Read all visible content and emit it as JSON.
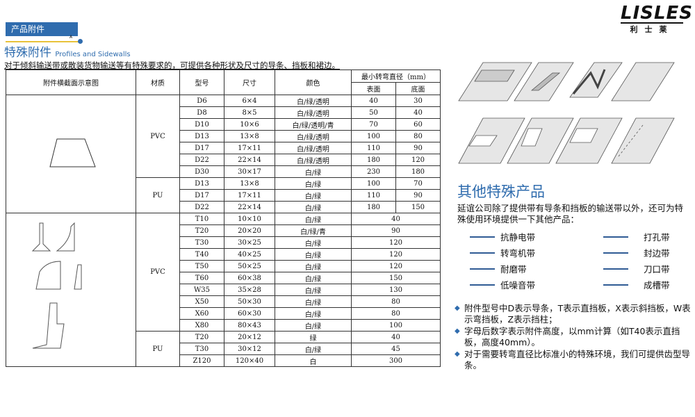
{
  "header": {
    "tab_label": "产品附件",
    "tab_marker": "A",
    "title_cn": "特殊附件",
    "title_en": "Profiles and Sidewalls",
    "intro": "对于倾斜输送带或散装货物输送等有特殊要求的，可提供各种形状及尺寸的导条、挡板和裙边。"
  },
  "logo": {
    "brand": "LISLES",
    "brand_cn": "利士莱"
  },
  "table": {
    "headers": {
      "diagram": "附件横截面示意图",
      "material": "材质",
      "model": "型号",
      "size": "尺寸",
      "color": "颜色",
      "min_diameter": "最小转弯直径（mm）",
      "surface": "表面",
      "bottom": "底面"
    },
    "groups": [
      {
        "material": "PVC",
        "rows": [
          [
            "D6",
            "6×4",
            "白/绿/透明",
            "40",
            "30"
          ],
          [
            "D8",
            "8×5",
            "白/绿/透明",
            "50",
            "40"
          ],
          [
            "D10",
            "10×6",
            "白/绿/透明/青",
            "70",
            "60"
          ],
          [
            "D13",
            "13×8",
            "白/绿/透明",
            "100",
            "80"
          ],
          [
            "D17",
            "17×11",
            "白/绿/透明",
            "110",
            "90"
          ],
          [
            "D22",
            "22×14",
            "白/绿/透明",
            "180",
            "120"
          ],
          [
            "D30",
            "30×17",
            "白/绿",
            "230",
            "180"
          ]
        ]
      },
      {
        "material": "PU",
        "rows": [
          [
            "D13",
            "13×8",
            "白/绿",
            "100",
            "70"
          ],
          [
            "D17",
            "17×11",
            "白/绿",
            "110",
            "90"
          ],
          [
            "D22",
            "22×14",
            "白/绿",
            "180",
            "150"
          ]
        ]
      },
      {
        "material": "PVC",
        "rows": [
          [
            "T10",
            "10×10",
            "白/绿",
            "40"
          ],
          [
            "T20",
            "20×20",
            "白/绿/青",
            "90"
          ],
          [
            "T30",
            "30×25",
            "白/绿",
            "120"
          ],
          [
            "T40",
            "40×25",
            "白/绿",
            "120"
          ],
          [
            "T50",
            "50×25",
            "白/绿",
            "120"
          ],
          [
            "T60",
            "60×38",
            "白/绿",
            "150"
          ],
          [
            "W35",
            "35×28",
            "白/绿",
            "130"
          ],
          [
            "X50",
            "50×30",
            "白/绿",
            "80"
          ],
          [
            "X60",
            "60×30",
            "白/绿",
            "80"
          ],
          [
            "X80",
            "80×43",
            "白/绿",
            "100"
          ]
        ]
      },
      {
        "material": "PU",
        "rows": [
          [
            "T20",
            "20×12",
            "绿",
            "40"
          ],
          [
            "T30",
            "30×12",
            "白/绿",
            "45"
          ],
          [
            "Z120",
            "120×40",
            "白",
            "300"
          ]
        ]
      }
    ]
  },
  "other": {
    "title": "其他特殊产品",
    "desc": "延谊公司除了提供带有导条和挡板的输送带以外，还可为特殊使用环境提供一下其他产品：",
    "left": [
      "抗静电带",
      "转弯机带",
      "耐磨带",
      "低噪音带"
    ],
    "right": [
      "打孔带",
      "封边带",
      "刀口带",
      "成槽带"
    ],
    "notes": [
      "附件型号中D表示导条，T表示直挡板，X表示斜挡板，W表示弯挡板，Z表示挡柱；",
      "字母后数字表示附件高度，以mm计算（如T40表示直挡板，高度40mm）。",
      "对于需要转弯直径比标准小的特殊环境，我们可提供齿型导条。"
    ]
  },
  "colors": {
    "accent": "#2f6cae",
    "tab_line": "#e8c23a"
  }
}
